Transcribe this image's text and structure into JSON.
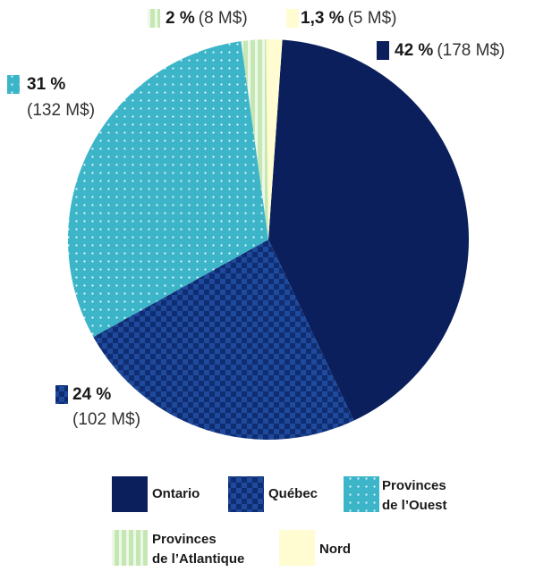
{
  "chart_data": {
    "type": "pie",
    "categories": [
      "Ontario",
      "Québec",
      "Provinces de l’Ouest",
      "Provinces de l’Atlantique",
      "Nord"
    ],
    "values": [
      42,
      24,
      31,
      2,
      1.3
    ],
    "value_labels": [
      "42 %",
      "24 %",
      "31 %",
      "2 %",
      "1,3 %"
    ],
    "amounts": [
      178,
      102,
      132,
      8,
      5
    ],
    "amount_labels": [
      "(178 M$)",
      "(102 M$)",
      "(132 M$)",
      "(8 M$)",
      "(5 M$)"
    ],
    "colors": [
      "#0b1f5c",
      "#1f4a9c",
      "#3db5c9",
      "#c5e7b3",
      "#fffcd2"
    ]
  }
}
